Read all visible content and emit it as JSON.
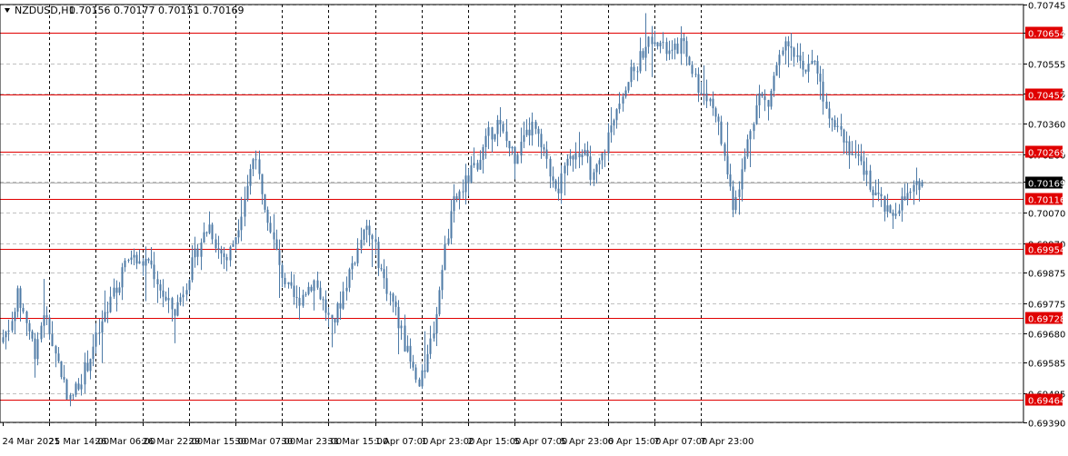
{
  "header": {
    "symbol_timeframe": "NZDUSD,H1",
    "ohlc": "0.70156 0.70177 0.70151 0.70169",
    "triangle_icon": "triangle-down-icon"
  },
  "colors": {
    "background": "#ffffff",
    "candle": "#4d7aa6",
    "grid": "#c0c0c0",
    "vgrid_dashed": "#000000",
    "level_line": "#e00000",
    "level_label_bg": "#e00000",
    "level_label_text": "#ffffff",
    "current_price_bg": "#000000",
    "current_price_text": "#ffffff",
    "axis_text": "#000000"
  },
  "chart_data": {
    "type": "candlestick",
    "title": "NZDUSD,H1",
    "y_ticks": [
      "0.70745",
      "0.70655",
      "0.70555",
      "0.70455",
      "0.70360",
      "0.70260",
      "0.70170",
      "0.70070",
      "0.69970",
      "0.69875",
      "0.69775",
      "0.69680",
      "0.69585",
      "0.69485",
      "0.69390"
    ],
    "x_ticks": [
      "24 Mar 2021",
      "25 Mar 14:00",
      "26 Mar 06:00",
      "26 Mar 22:00",
      "29 Mar 15:00",
      "30 Mar 07:00",
      "30 Mar 23:00",
      "31 Mar 15:00",
      "1 Apr 07:00",
      "1 Apr 23:00",
      "2 Apr 15:00",
      "5 Apr 07:00",
      "5 Apr 23:00",
      "6 Apr 15:00",
      "7 Apr 07:00",
      "7 Apr 23:00"
    ],
    "ylim": [
      0.6939,
      0.70745
    ],
    "levels": [
      "0.70654",
      "0.70452",
      "0.70269",
      "0.70116",
      "0.69954",
      "0.69728",
      "0.69464"
    ],
    "current_price": "0.70169",
    "last_ohlc": [
      0.70156,
      0.70177,
      0.70151,
      0.70169
    ],
    "price_path": [
      [
        0,
        0.6965
      ],
      [
        3,
        0.697
      ],
      [
        6,
        0.698
      ],
      [
        9,
        0.6972
      ],
      [
        12,
        0.6962
      ],
      [
        15,
        0.6975
      ],
      [
        18,
        0.6965
      ],
      [
        21,
        0.6955
      ],
      [
        24,
        0.6946
      ],
      [
        27,
        0.6952
      ],
      [
        30,
        0.6958
      ],
      [
        33,
        0.6966
      ],
      [
        36,
        0.6973
      ],
      [
        39,
        0.698
      ],
      [
        42,
        0.6988
      ],
      [
        45,
        0.6993
      ],
      [
        48,
        0.699
      ],
      [
        51,
        0.6992
      ],
      [
        54,
        0.6985
      ],
      [
        57,
        0.6978
      ],
      [
        60,
        0.6975
      ],
      [
        63,
        0.6982
      ],
      [
        66,
        0.699
      ],
      [
        69,
        0.6998
      ],
      [
        72,
        0.7003
      ],
      [
        75,
        0.6995
      ],
      [
        78,
        0.6992
      ],
      [
        81,
        0.7
      ],
      [
        84,
        0.7012
      ],
      [
        87,
        0.7025
      ],
      [
        90,
        0.7015
      ],
      [
        93,
        0.7002
      ],
      [
        96,
        0.699
      ],
      [
        99,
        0.6982
      ],
      [
        102,
        0.6978
      ],
      [
        105,
        0.6982
      ],
      [
        108,
        0.6985
      ],
      [
        111,
        0.6978
      ],
      [
        114,
        0.697
      ],
      [
        117,
        0.6978
      ],
      [
        120,
        0.6988
      ],
      [
        123,
        0.6995
      ],
      [
        126,
        0.7002
      ],
      [
        129,
        0.6995
      ],
      [
        132,
        0.6985
      ],
      [
        135,
        0.6978
      ],
      [
        138,
        0.6968
      ],
      [
        141,
        0.6958
      ],
      [
        144,
        0.695
      ],
      [
        147,
        0.696
      ],
      [
        150,
        0.6975
      ],
      [
        153,
        0.6995
      ],
      [
        156,
        0.701
      ],
      [
        159,
        0.7015
      ],
      [
        162,
        0.702
      ],
      [
        165,
        0.7025
      ],
      [
        168,
        0.7032
      ],
      [
        171,
        0.7036
      ],
      [
        174,
        0.703
      ],
      [
        177,
        0.7025
      ],
      [
        180,
        0.703
      ],
      [
        183,
        0.7035
      ],
      [
        186,
        0.7028
      ],
      [
        189,
        0.702
      ],
      [
        192,
        0.7015
      ],
      [
        195,
        0.7022
      ],
      [
        198,
        0.7028
      ],
      [
        201,
        0.7025
      ],
      [
        204,
        0.7018
      ],
      [
        207,
        0.7025
      ],
      [
        210,
        0.7035
      ],
      [
        213,
        0.7045
      ],
      [
        216,
        0.705
      ],
      [
        219,
        0.7055
      ],
      [
        222,
        0.7062
      ],
      [
        225,
        0.7065
      ],
      [
        228,
        0.706
      ],
      [
        231,
        0.7058
      ],
      [
        234,
        0.7062
      ],
      [
        237,
        0.7056
      ],
      [
        240,
        0.7048
      ],
      [
        243,
        0.7045
      ],
      [
        246,
        0.704
      ],
      [
        249,
        0.7025
      ],
      [
        252,
        0.701
      ],
      [
        255,
        0.702
      ],
      [
        258,
        0.7035
      ],
      [
        261,
        0.7045
      ],
      [
        264,
        0.7042
      ],
      [
        267,
        0.7055
      ],
      [
        270,
        0.706
      ],
      [
        273,
        0.7058
      ],
      [
        276,
        0.7052
      ],
      [
        279,
        0.7058
      ],
      [
        282,
        0.7048
      ],
      [
        285,
        0.704
      ],
      [
        288,
        0.7036
      ],
      [
        291,
        0.703
      ],
      [
        294,
        0.7025
      ],
      [
        297,
        0.702
      ],
      [
        300,
        0.7015
      ],
      [
        303,
        0.701
      ],
      [
        306,
        0.7005
      ],
      [
        309,
        0.701
      ],
      [
        312,
        0.7012
      ],
      [
        315,
        0.7015
      ],
      [
        316,
        0.70169
      ]
    ]
  }
}
